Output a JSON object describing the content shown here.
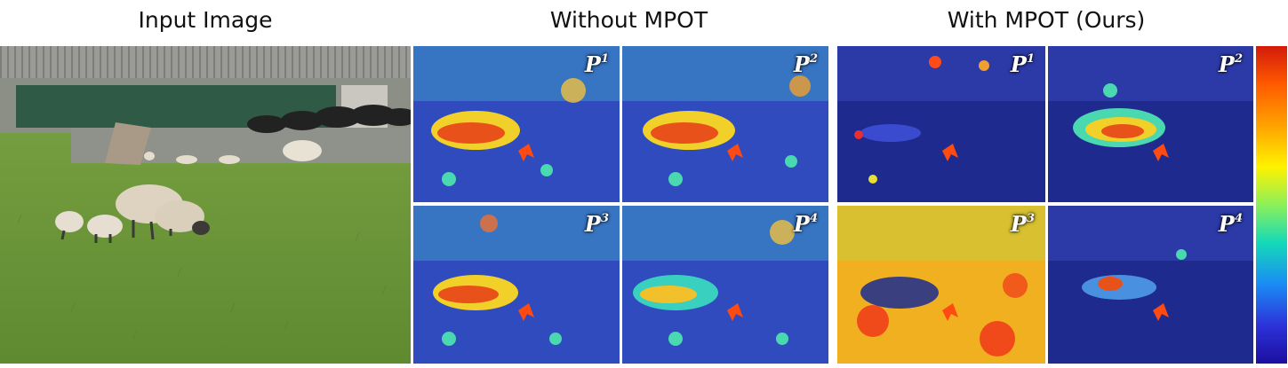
{
  "headers": {
    "input": "Input Image",
    "without": "Without MPOT",
    "with": "With MPOT (Ours)"
  },
  "panels": {
    "without": [
      {
        "label": "P",
        "sup": "1"
      },
      {
        "label": "P",
        "sup": "2"
      },
      {
        "label": "P",
        "sup": "3"
      },
      {
        "label": "P",
        "sup": "4"
      }
    ],
    "with": [
      {
        "label": "P",
        "sup": "1"
      },
      {
        "label": "P",
        "sup": "2"
      },
      {
        "label": "P",
        "sup": "3"
      },
      {
        "label": "P",
        "sup": "4"
      }
    ]
  },
  "colors": {
    "grass": "#6f9a3c",
    "heatmap_cool": "#2a3fb8",
    "heatmap_hot": "#e8451a",
    "arrow": "#ff4a12"
  }
}
